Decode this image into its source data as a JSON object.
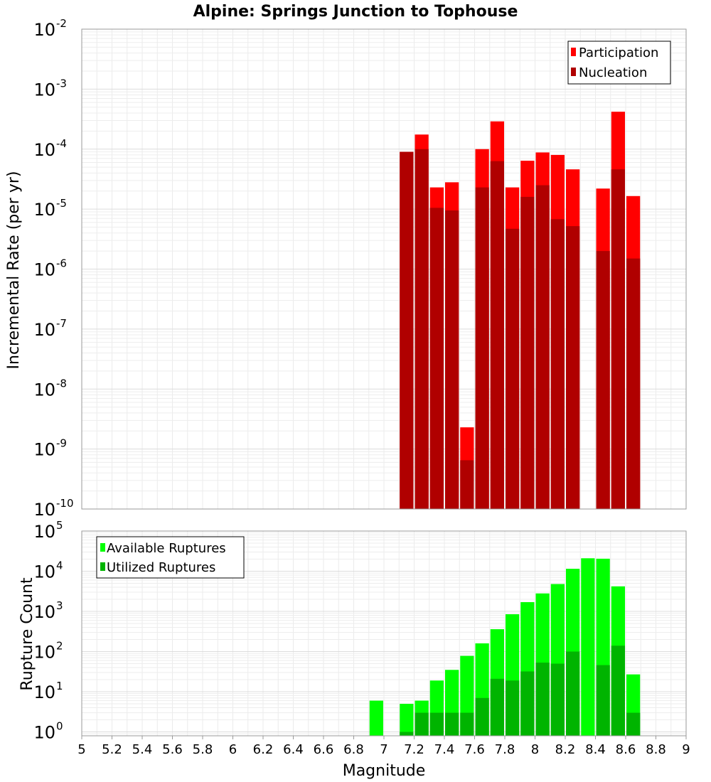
{
  "chart_data": [
    {
      "type": "bar",
      "title": "Alpine: Springs Junction to Tophouse",
      "ylabel": "Incremental Rate (per yr)",
      "y_scale": "log",
      "ylim": [
        1e-10,
        0.01
      ],
      "xlim": [
        5,
        9
      ],
      "bin_width": 0.1,
      "legend": "top-right",
      "grid": true,
      "series": [
        {
          "name": "Participation",
          "color": "#ff0000",
          "x": [
            7.15,
            7.25,
            7.35,
            7.45,
            7.55,
            7.65,
            7.75,
            7.85,
            7.95,
            8.05,
            8.15,
            8.25,
            8.45,
            8.55,
            8.65
          ],
          "values": [
            9e-05,
            0.000175,
            2.3e-05,
            2.8e-05,
            2.3e-09,
            0.0001,
            0.00029,
            2.3e-05,
            6.4e-05,
            8.8e-05,
            8e-05,
            4.6e-05,
            2.2e-05,
            0.00042,
            1.65e-05
          ]
        },
        {
          "name": "Nucleation",
          "color": "#b00000",
          "x": [
            7.15,
            7.25,
            7.35,
            7.45,
            7.55,
            7.65,
            7.75,
            7.85,
            7.95,
            8.05,
            8.15,
            8.25,
            8.45,
            8.55,
            8.65
          ],
          "values": [
            9e-05,
            0.0001,
            1.05e-05,
            9.5e-06,
            6.5e-10,
            2.3e-05,
            6.3e-05,
            4.7e-06,
            1.6e-05,
            2.5e-05,
            6.8e-06,
            5.2e-06,
            2e-06,
            4.6e-05,
            1.5e-06
          ]
        }
      ]
    },
    {
      "type": "bar",
      "title": "",
      "xlabel": "Magnitude",
      "ylabel": "Rupture Count",
      "y_scale": "log",
      "ylim": [
        0.8,
        100000.0
      ],
      "xlim": [
        5,
        9
      ],
      "bin_width": 0.1,
      "legend": "top-left",
      "grid": true,
      "x_ticks": [
        "5",
        "5.2",
        "5.4",
        "5.6",
        "5.8",
        "6",
        "6.2",
        "6.4",
        "6.6",
        "6.8",
        "7",
        "7.2",
        "7.4",
        "7.6",
        "7.8",
        "8",
        "8.2",
        "8.4",
        "8.6",
        "8.8",
        "9"
      ],
      "series": [
        {
          "name": "Available Ruptures",
          "color": "#00ff00",
          "x": [
            6.95,
            7.15,
            7.25,
            7.35,
            7.45,
            7.55,
            7.65,
            7.75,
            7.85,
            7.95,
            8.05,
            8.15,
            8.25,
            8.35,
            8.45,
            8.55,
            8.65
          ],
          "values": [
            6,
            5,
            6,
            19,
            35,
            78,
            160,
            360,
            850,
            1700,
            2800,
            4800,
            11500,
            21000,
            20500,
            4200,
            27
          ]
        },
        {
          "name": "Utilized Ruptures",
          "color": "#00b400",
          "x": [
            7.15,
            7.25,
            7.35,
            7.45,
            7.55,
            7.65,
            7.75,
            7.85,
            7.95,
            8.05,
            8.15,
            8.25,
            8.45,
            8.55,
            8.65
          ],
          "values": [
            1,
            3,
            3,
            3,
            3,
            7,
            21,
            19,
            32,
            53,
            50,
            100,
            46,
            140,
            3
          ]
        }
      ]
    }
  ]
}
